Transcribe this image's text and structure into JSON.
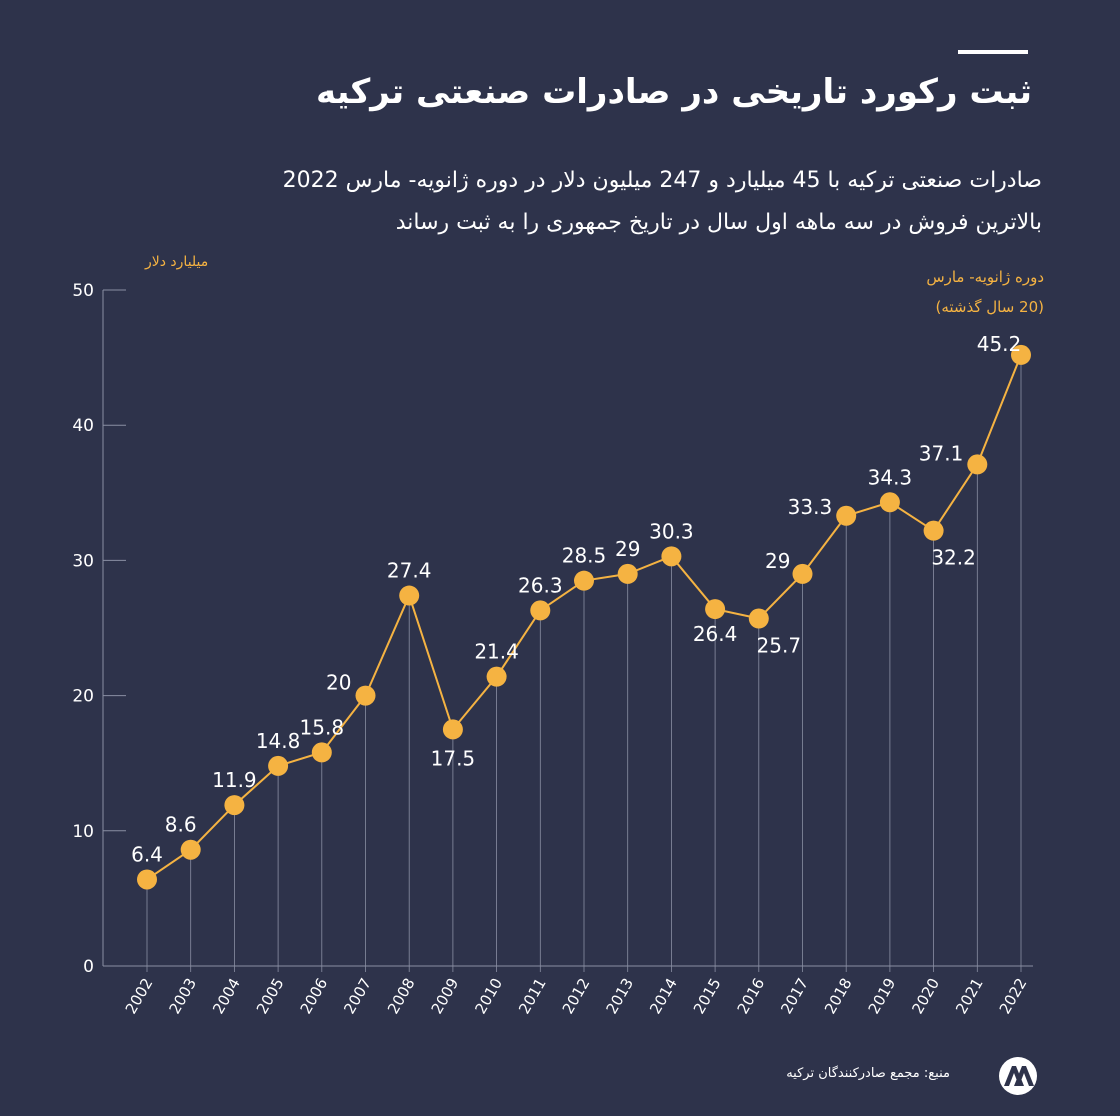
{
  "title": "ثبت رکورد تاریخی در صادرات صنعتی ترکیه",
  "subtitle": [
    "صادرات صنعتی ترکیه با 45 میلیارد و 247 میلیون دلار در دوره ژانویه- مارس 2022",
    "بالاترین فروش در سه ماهه اول سال در تاریخ جمهوری را به ثبت رساند"
  ],
  "source": "منبع: مجمع صادرکنندگان ترکیه",
  "logo_text": "AA",
  "colors": {
    "background": "#2e334b",
    "accent": "#f5b342",
    "text": "#ffffff",
    "grid": "#8a8fa3"
  },
  "chart_data": {
    "type": "line",
    "ylabel": "میلیارد دلار",
    "xlabel": "",
    "period_note": [
      "دوره ژانویه- مارس",
      "(20 سال گذشته)"
    ],
    "ylim": [
      0,
      50
    ],
    "yticks": [
      0,
      10,
      20,
      30,
      40,
      50
    ],
    "x": [
      "2002",
      "2003",
      "2004",
      "2005",
      "2006",
      "2007",
      "2008",
      "2009",
      "2010",
      "2011",
      "2012",
      "2013",
      "2014",
      "2015",
      "2016",
      "2017",
      "2018",
      "2019",
      "2020",
      "2021",
      "2022"
    ],
    "values": [
      6.4,
      8.6,
      11.9,
      14.8,
      15.8,
      20,
      27.4,
      17.5,
      21.4,
      26.3,
      28.5,
      29,
      30.3,
      26.4,
      25.7,
      29,
      33.3,
      34.3,
      32.2,
      37.1,
      45.2
    ],
    "labels": [
      "6.4",
      "8.6",
      "11.9",
      "14.8",
      "15.8",
      "20",
      "27.4",
      "17.5",
      "21.4",
      "26.3",
      "28.5",
      "29",
      "30.3",
      "26.4",
      "25.7",
      "29",
      "33.3",
      "34.3",
      "32.2",
      "37.1",
      "45.2"
    ]
  }
}
